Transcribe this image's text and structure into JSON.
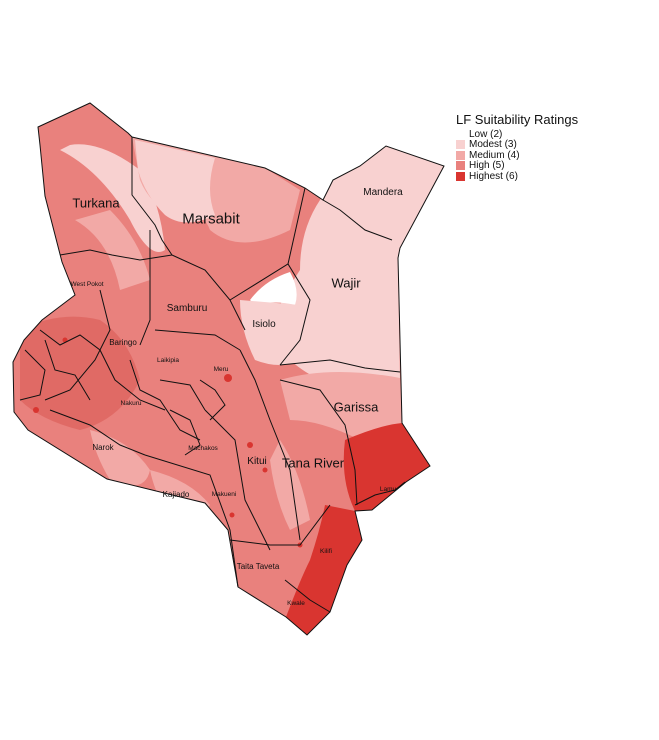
{
  "legend": {
    "title": "LF Suitability Ratings",
    "items": [
      {
        "label": "Low (2)",
        "color": "#ffffff"
      },
      {
        "label": "Modest (3)",
        "color": "#f8d1d0"
      },
      {
        "label": "Medium (4)",
        "color": "#f2a9a6"
      },
      {
        "label": "High (5)",
        "color": "#e9817d"
      },
      {
        "label": "Highest (6)",
        "color": "#d93530"
      }
    ]
  },
  "counties": {
    "turkana": "Turkana",
    "marsabit": "Marsabit",
    "mandera": "Mandera",
    "wajir": "Wajir",
    "west_pokot": "West Pokot",
    "samburu": "Samburu",
    "baringo": "Baringo",
    "isiolo": "Isiolo",
    "laikipia": "Laikipia",
    "meru": "Meru",
    "nakuru": "Nakuru",
    "garissa": "Garissa",
    "narok": "Narok",
    "machakos": "Machakos",
    "kitui": "Kitui",
    "tana_river": "Tana River",
    "kajiado": "Kajiado",
    "makueni": "Makueni",
    "lamu": "Lamu",
    "kilifi": "Kilifi",
    "taita_taveta": "Taita Taveta",
    "kwale": "Kwale"
  }
}
